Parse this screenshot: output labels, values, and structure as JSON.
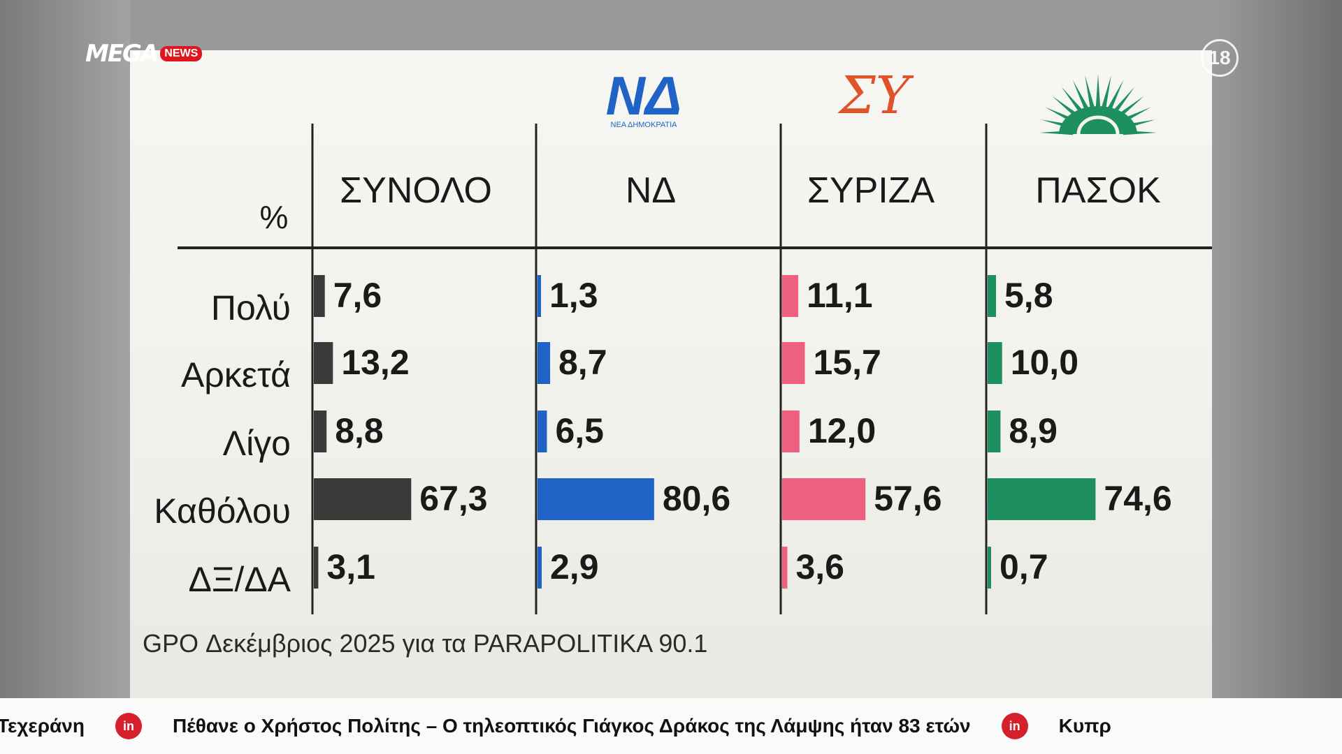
{
  "broadcast": {
    "channel": "MEGA",
    "channel_badge": "NEWS",
    "rating": "18"
  },
  "ticker": {
    "items": [
      "Τεχεράνη",
      "Πέθανε ο Χρήστος Πολίτης – Ο τηλεοπτικός Γιάγκος Δράκος της Λάμψης ήταν 83 ετών",
      "Κυπρ"
    ],
    "logo_text": "in"
  },
  "chart_data": {
    "type": "bar",
    "unit_label": "%",
    "categories": [
      "Πολύ",
      "Αρκετά",
      "Λίγο",
      "Καθόλου",
      "ΔΞ/ΔΑ"
    ],
    "series": [
      {
        "name": "ΣΥΝΟΛΟ",
        "color": "#3a3a3a",
        "values": [
          7.6,
          13.2,
          8.8,
          67.3,
          3.1
        ],
        "labels": [
          "7,6",
          "13,2",
          "8,8",
          "67,3",
          "3,1"
        ]
      },
      {
        "name": "ΝΔ",
        "color": "#1f63c6",
        "values": [
          1.3,
          8.7,
          6.5,
          80.6,
          2.9
        ],
        "labels": [
          "1,3",
          "8,7",
          "6,5",
          "80,6",
          "2,9"
        ]
      },
      {
        "name": "ΣΥΡΙΖΑ",
        "color": "#ef5f80",
        "values": [
          11.1,
          15.7,
          12.0,
          57.6,
          3.6
        ],
        "labels": [
          "11,1",
          "15,7",
          "12,0",
          "57,6",
          "3,6"
        ]
      },
      {
        "name": "ΠΑΣΟΚ",
        "color": "#1e8f5e",
        "values": [
          5.8,
          10.0,
          8.9,
          74.6,
          0.7
        ],
        "labels": [
          "5,8",
          "10,0",
          "8,9",
          "74,6",
          "0,7"
        ]
      }
    ],
    "logos": {
      "nd": "ΝΔ",
      "nd_caption": "ΝΕΑ ΔΗΜΟΚΡΑΤΙΑ",
      "syriza": "ΣΥ",
      "pasok": "sun-icon"
    },
    "source": "GPO Δεκέμβριος 2025 για τα PARAPOLITIKA 90.1",
    "orientation": "horizontal",
    "grid": false
  }
}
